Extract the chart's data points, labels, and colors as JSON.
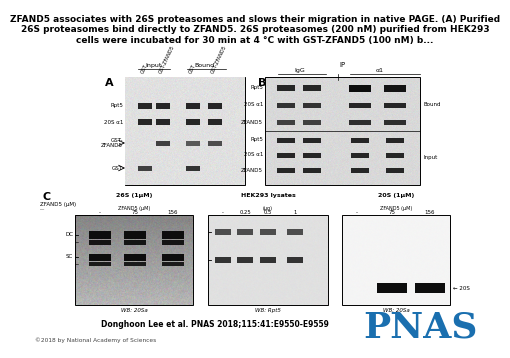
{
  "title_line1": "ZFAND5 associates with 26S proteasomes and slows their migration in native PAGE. (A) Purified",
  "title_line2": "26S proteasomes bind directly to ZFAND5. 26S proteasomes (200 nM) purified from HEK293",
  "title_line3": "cells were incubated for 30 min at 4 °C with GST-ZFAND5 (100 nM) b...",
  "citation": "Donghoon Lee et al. PNAS 2018;115:41:E9550-E9559",
  "copyright": "©2018 by National Academy of Sciences",
  "pnas_color": "#1a6faf",
  "bg_color": "#ffffff"
}
